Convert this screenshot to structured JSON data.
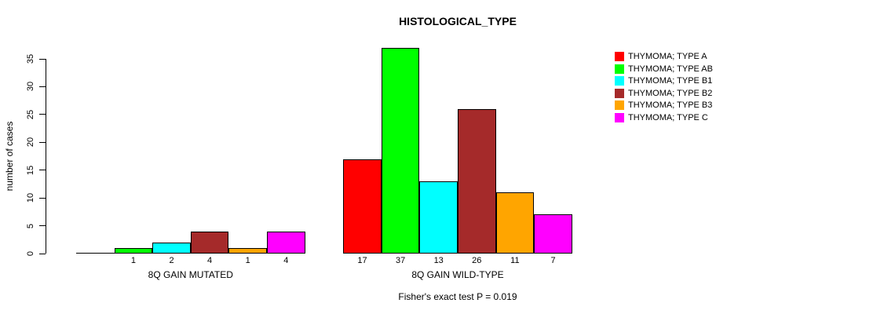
{
  "chart_data": {
    "type": "bar",
    "title": "HISTOLOGICAL_TYPE",
    "ylabel": "number of cases",
    "xlabel": "",
    "ylim": [
      0,
      35
    ],
    "yticks": [
      0,
      5,
      10,
      15,
      20,
      25,
      30,
      35
    ],
    "grid": false,
    "legend_position": "right",
    "series": [
      {
        "name": "THYMOMA; TYPE A",
        "color": "#FF0000"
      },
      {
        "name": "THYMOMA; TYPE AB",
        "color": "#00FF00"
      },
      {
        "name": "THYMOMA; TYPE B1",
        "color": "#00FFFF"
      },
      {
        "name": "THYMOMA; TYPE B2",
        "color": "#A52A2A"
      },
      {
        "name": "THYMOMA; TYPE B3",
        "color": "#FFA500"
      },
      {
        "name": "THYMOMA; TYPE C",
        "color": "#FF00FF"
      }
    ],
    "groups": [
      {
        "label": "8Q GAIN MUTATED",
        "values": [
          0,
          1,
          2,
          4,
          1,
          4
        ],
        "bar_labels": [
          "",
          "1",
          "2",
          "4",
          "1",
          "4"
        ]
      },
      {
        "label": "8Q GAIN WILD-TYPE",
        "values": [
          17,
          37,
          13,
          26,
          11,
          7
        ],
        "bar_labels": [
          "17",
          "37",
          "13",
          "26",
          "11",
          "7"
        ]
      }
    ],
    "annotation": "Fisher's exact test P = 0.019"
  }
}
